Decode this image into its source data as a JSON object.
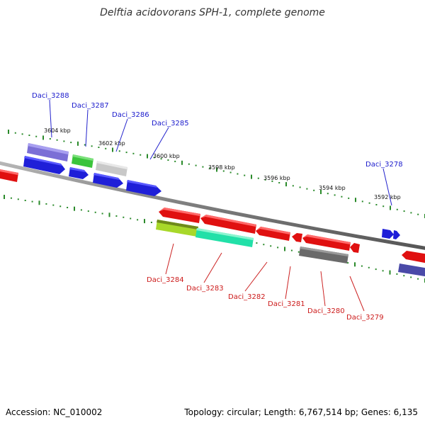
{
  "title": "Delftia acidovorans SPH-1, complete genome",
  "footer": {
    "accession": "Accession: NC_010002",
    "summary": "Topology: circular; Length: 6,767,514 bp; Genes: 6,135"
  },
  "colors": {
    "background": "#ffffff",
    "backbone": "#8a8a8a",
    "tick": "#2a8a2a",
    "forward_label": "#1a1acc",
    "reverse_label": "#cc1a1a",
    "label_leader_forward": "#2222cc",
    "label_leader_reverse": "#cc2222"
  },
  "scale": {
    "tick_labels": [
      "3604 kbp",
      "3602 kbp",
      "3600 kbp",
      "3598 kbp",
      "3596 kbp",
      "3594 kbp",
      "3592 kbp"
    ]
  },
  "forward_genes": [
    {
      "id": "Daci_3288",
      "labeled": true,
      "colors": [
        "#7b6fd6",
        "#1f1fd8"
      ]
    },
    {
      "id": "Daci_3287",
      "labeled": true,
      "colors": [
        "#3bc43b",
        "#1f1fd8"
      ]
    },
    {
      "id": "Daci_3286",
      "labeled": true,
      "colors": [
        "#c8c8c8",
        "#1f1fd8"
      ]
    },
    {
      "id": "Daci_3285",
      "labeled": true,
      "colors": [
        "#1f1fd8"
      ]
    },
    {
      "id": "Daci_3278",
      "labeled": true,
      "colors": [
        "#1f1fd8"
      ]
    }
  ],
  "reverse_genes": [
    {
      "id": "Daci_3284",
      "labeled": true,
      "colors": [
        "#e01010",
        "#a8d82a"
      ]
    },
    {
      "id": "Daci_3283",
      "labeled": true,
      "colors": [
        "#e01010",
        "#22e0a8"
      ]
    },
    {
      "id": "Daci_3282",
      "labeled": true,
      "colors": [
        "#e01010"
      ]
    },
    {
      "id": "Daci_3281",
      "labeled": true,
      "colors": [
        "#e01010"
      ]
    },
    {
      "id": "Daci_3280",
      "labeled": true,
      "colors": [
        "#e01010",
        "#6a6a6a"
      ]
    },
    {
      "id": "Daci_3279",
      "labeled": true,
      "colors": [
        "#e01010"
      ]
    }
  ]
}
